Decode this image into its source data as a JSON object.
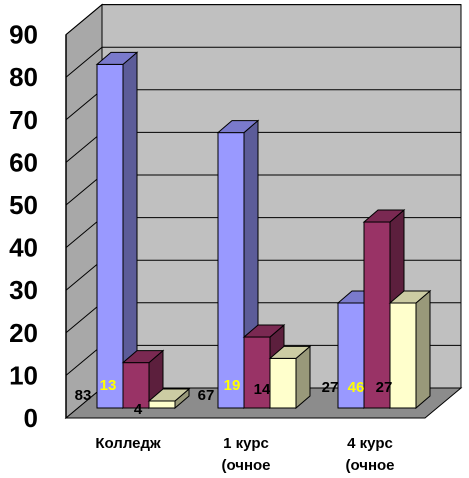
{
  "chart_data": {
    "type": "bar",
    "categories": [
      "Колледж",
      "1 курс",
      "4 курс"
    ],
    "category_sublabels": [
      "",
      "(очное",
      "(очное"
    ],
    "series": [
      {
        "values": [
          83,
          67,
          27
        ],
        "color": "#9999FF"
      },
      {
        "values": [
          13,
          19,
          46
        ],
        "color": "#993366"
      },
      {
        "values": [
          4,
          14,
          27
        ],
        "color": "#FFFFCC"
      }
    ],
    "data_labels": [
      [
        "83",
        "67",
        "27"
      ],
      [
        "13",
        "19",
        "46"
      ],
      [
        "4",
        "14",
        "27"
      ]
    ],
    "label_colors": [
      "#000000",
      "#FFFF00",
      "#000000"
    ],
    "y_ticks": [
      "0",
      "10",
      "20",
      "30",
      "40",
      "50",
      "60",
      "70",
      "80",
      "90"
    ],
    "ylim": [
      0,
      90
    ],
    "grid": true,
    "legend": "none",
    "style": "3d-bar",
    "wall_color": "#C0C0C0"
  }
}
